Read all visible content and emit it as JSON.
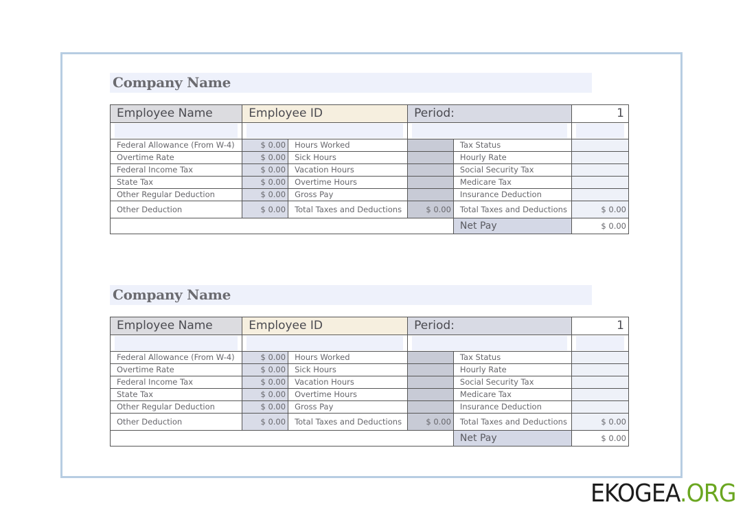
{
  "stubs": [
    {
      "company_name": "Company Name",
      "employee_name_label": "Employee Name",
      "employee_id_label": "Employee ID",
      "period_label": "Period:",
      "period_number": "1",
      "rows": [
        {
          "label": "Federal Allowance (From W-4)",
          "value": "$ 0.00",
          "mid_label": "Hours Worked",
          "right_label": "Tax Status"
        },
        {
          "label": "Overtime Rate",
          "value": "$ 0.00",
          "mid_label": "Sick Hours",
          "right_label": "Hourly Rate"
        },
        {
          "label": "Federal Income Tax",
          "value": "$ 0.00",
          "mid_label": "Vacation Hours",
          "right_label": "Social Security Tax"
        },
        {
          "label": "State Tax",
          "value": "$ 0.00",
          "mid_label": "Overtime Hours",
          "right_label": "Medicare Tax"
        },
        {
          "label": "Other Regular Deduction",
          "value": "$ 0.00",
          "mid_label": "Gross Pay",
          "right_label": "Insurance Deduction"
        }
      ],
      "other_deduction_label": "Other Deduction",
      "other_deduction_value": "$ 0.00",
      "mid_total_label": "Total Taxes and Deductions",
      "mid_total_value": "$ 0.00",
      "right_total_label": "Total Taxes and  Deductions",
      "right_total_value": "$ 0.00",
      "net_pay_label": "Net Pay",
      "net_pay_value": "$ 0.00"
    },
    {
      "company_name": "Company Name",
      "employee_name_label": "Employee Name",
      "employee_id_label": "Employee ID",
      "period_label": "Period:",
      "period_number": "1",
      "rows": [
        {
          "label": "Federal Allowance (From W-4)",
          "value": "$ 0.00",
          "mid_label": "Hours Worked",
          "right_label": "Tax Status"
        },
        {
          "label": "Overtime Rate",
          "value": "$ 0.00",
          "mid_label": "Sick Hours",
          "right_label": "Hourly Rate"
        },
        {
          "label": "Federal Income Tax",
          "value": "$ 0.00",
          "mid_label": "Vacation Hours",
          "right_label": "Social Security Tax"
        },
        {
          "label": "State Tax",
          "value": "$ 0.00",
          "mid_label": "Overtime Hours",
          "right_label": "Medicare Tax"
        },
        {
          "label": "Other Regular Deduction",
          "value": "$ 0.00",
          "mid_label": "Gross Pay",
          "right_label": "Insurance Deduction"
        }
      ],
      "other_deduction_label": "Other Deduction",
      "other_deduction_value": "$ 0.00",
      "mid_total_label": "Total Taxes and Deductions",
      "mid_total_value": "$ 0.00",
      "right_total_label": "Total Taxes and  Deductions",
      "right_total_value": "$ 0.00",
      "net_pay_label": "Net Pay",
      "net_pay_value": "$ 0.00"
    }
  ],
  "watermark": {
    "main": "EKOGEA",
    "suffix": ".ORG"
  },
  "colors": {
    "frame": "#b7cde2",
    "band": "#eef1fb",
    "id_header": "#f6efdf",
    "logo_accent": "#6aa620"
  }
}
